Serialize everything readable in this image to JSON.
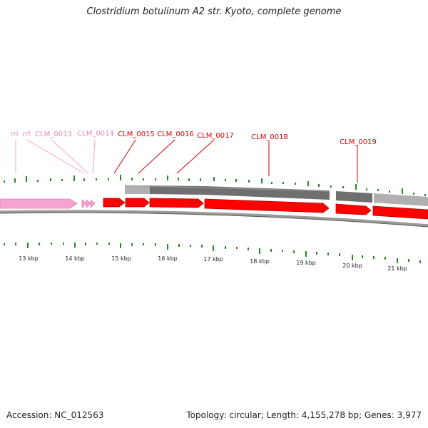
{
  "title": "Clostridium botulinum A2 str. Kyoto, complete genome",
  "accession": "Accession: NC_012563",
  "stats": "Topology: circular; Length: 4,155,278 bp; Genes: 3,977",
  "colors": {
    "rna": "#f5a3cf",
    "rna_label": "#e889bd",
    "cds": "#ff0000",
    "cds_label": "#dd0000",
    "backbone": "#888888",
    "tick": "#228b22",
    "hit_light": "#b0b0b0",
    "hit_dark": "#6f6f6f"
  },
  "gene_labels": [
    "rrl",
    "rrf",
    "CLM_0013",
    "CLM_0014",
    "CLM_0015",
    "CLM_0016",
    "CLM_0017",
    "CLM_0018",
    "CLM_0019"
  ],
  "scale_labels": [
    "13 kbp",
    "14 kbp",
    "15 kbp",
    "16 kbp",
    "17 kbp",
    "18 kbp",
    "19 kbp",
    "20 kbp",
    "21 kbp"
  ]
}
